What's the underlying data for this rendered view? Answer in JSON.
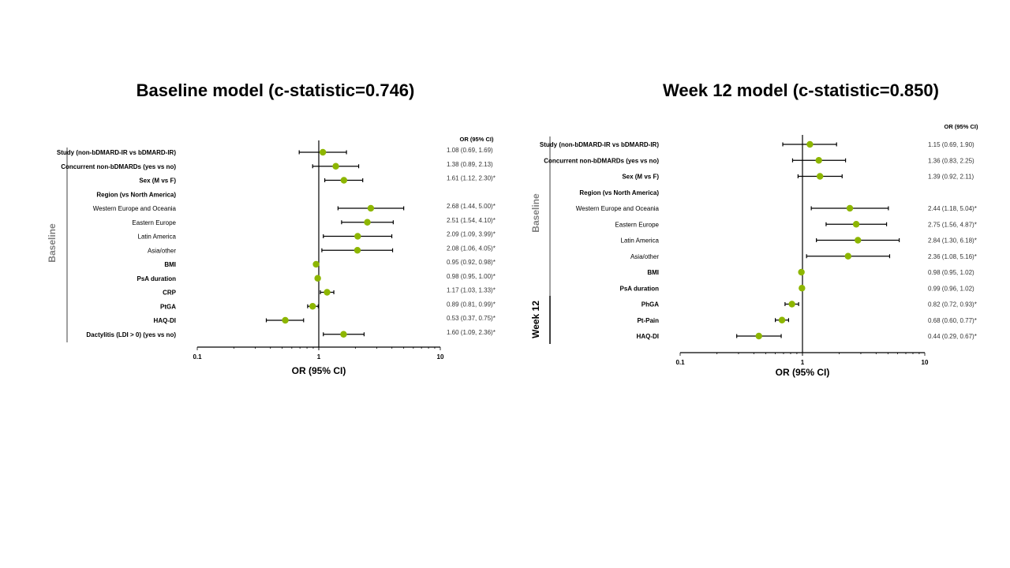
{
  "chart_data": [
    {
      "type": "forest",
      "title": "Baseline model (c-statistic=0.746)",
      "xlabel": "OR (95% CI)",
      "xscale": "log",
      "xlim": [
        0.1,
        10
      ],
      "xticks": [
        "0.1",
        "1",
        "10"
      ],
      "reference_line": 1,
      "value_header": "OR (95% CI)",
      "marker_color": "#8DB600",
      "groups": [
        {
          "label": "Baseline",
          "color": "#808080"
        }
      ],
      "rows": [
        {
          "label": "Study (non-bDMARD-IR vs bDMARD-IR)",
          "or": 1.08,
          "lo": 0.69,
          "hi": 1.69,
          "text": "1.08 (0.69, 1.69)",
          "group": "Baseline"
        },
        {
          "label": "Concurrent non-bDMARDs (yes vs no)",
          "or": 1.38,
          "lo": 0.89,
          "hi": 2.13,
          "text": "1.38 (0.89, 2.13)",
          "group": "Baseline"
        },
        {
          "label": "Sex (M vs F)",
          "or": 1.61,
          "lo": 1.12,
          "hi": 2.3,
          "text": "1.61 (1.12, 2.30)*",
          "group": "Baseline"
        },
        {
          "label": "Region (vs North America)",
          "or": null,
          "lo": null,
          "hi": null,
          "text": "",
          "group": "Baseline"
        },
        {
          "label": "Western Europe and Oceania",
          "or": 2.68,
          "lo": 1.44,
          "hi": 5.0,
          "text": "2.68 (1.44, 5.00)*",
          "subitem": true,
          "group": "Baseline"
        },
        {
          "label": "Eastern Europe",
          "or": 2.51,
          "lo": 1.54,
          "hi": 4.1,
          "text": "2.51 (1.54, 4.10)*",
          "subitem": true,
          "group": "Baseline"
        },
        {
          "label": "Latin America",
          "or": 2.09,
          "lo": 1.09,
          "hi": 3.99,
          "text": "2.09 (1.09, 3.99)*",
          "subitem": true,
          "group": "Baseline"
        },
        {
          "label": "Asia/other",
          "or": 2.08,
          "lo": 1.06,
          "hi": 4.05,
          "text": "2.08 (1.06, 4.05)*",
          "subitem": true,
          "group": "Baseline"
        },
        {
          "label": "BMI",
          "or": 0.95,
          "lo": 0.92,
          "hi": 0.98,
          "text": "0.95 (0.92, 0.98)*",
          "group": "Baseline"
        },
        {
          "label": "PsA duration",
          "or": 0.98,
          "lo": 0.95,
          "hi": 1.0,
          "text": "0.98 (0.95, 1.00)*",
          "group": "Baseline"
        },
        {
          "label": "CRP",
          "or": 1.17,
          "lo": 1.03,
          "hi": 1.33,
          "text": "1.17 (1.03, 1.33)*",
          "group": "Baseline"
        },
        {
          "label": "PtGA",
          "or": 0.89,
          "lo": 0.81,
          "hi": 0.99,
          "text": "0.89 (0.81, 0.99)*",
          "group": "Baseline"
        },
        {
          "label": "HAQ-DI",
          "or": 0.53,
          "lo": 0.37,
          "hi": 0.75,
          "text": "0.53 (0.37, 0.75)*",
          "group": "Baseline"
        },
        {
          "label": "Dactylitis (LDI > 0) (yes vs no)",
          "or": 1.6,
          "lo": 1.09,
          "hi": 2.36,
          "text": "1.60 (1.09, 2.36)*",
          "group": "Baseline"
        }
      ]
    },
    {
      "type": "forest",
      "title": "Week 12 model (c-statistic=0.850)",
      "xlabel": "OR (95% CI)",
      "xscale": "log",
      "xlim": [
        0.1,
        10
      ],
      "xticks": [
        "0.1",
        "1",
        "10"
      ],
      "reference_line": 1,
      "value_header": "OR (95% CI)",
      "marker_color": "#8DB600",
      "groups": [
        {
          "label": "Baseline",
          "color": "#808080"
        },
        {
          "label": "Week 12",
          "color": "#000000"
        }
      ],
      "rows": [
        {
          "label": "Study (non-bDMARD-IR vs bDMARD-IR)",
          "or": 1.15,
          "lo": 0.69,
          "hi": 1.9,
          "text": "1.15 (0.69, 1.90)",
          "group": "Baseline"
        },
        {
          "label": "Concurrent non-bDMARDs (yes vs no)",
          "or": 1.36,
          "lo": 0.83,
          "hi": 2.25,
          "text": "1.36 (0.83, 2.25)",
          "group": "Baseline"
        },
        {
          "label": "Sex (M vs F)",
          "or": 1.39,
          "lo": 0.92,
          "hi": 2.11,
          "text": "1.39 (0.92, 2.11)",
          "group": "Baseline"
        },
        {
          "label": "Region (vs North America)",
          "or": null,
          "lo": null,
          "hi": null,
          "text": "",
          "group": "Baseline"
        },
        {
          "label": "Western Europe and Oceania",
          "or": 2.44,
          "lo": 1.18,
          "hi": 5.04,
          "text": "2.44 (1.18, 5.04)*",
          "subitem": true,
          "group": "Baseline"
        },
        {
          "label": "Eastern Europe",
          "or": 2.75,
          "lo": 1.56,
          "hi": 4.87,
          "text": "2.75 (1.56, 4.87)*",
          "subitem": true,
          "group": "Baseline"
        },
        {
          "label": "Latin America",
          "or": 2.84,
          "lo": 1.3,
          "hi": 6.18,
          "text": "2.84 (1.30, 6.18)*",
          "subitem": true,
          "group": "Baseline"
        },
        {
          "label": "Asia/other",
          "or": 2.36,
          "lo": 1.08,
          "hi": 5.16,
          "text": "2.36 (1.08, 5.16)*",
          "subitem": true,
          "group": "Baseline"
        },
        {
          "label": "BMI",
          "or": 0.98,
          "lo": 0.95,
          "hi": 1.02,
          "text": "0.98 (0.95, 1.02)",
          "group": "Baseline"
        },
        {
          "label": "PsA duration",
          "or": 0.99,
          "lo": 0.96,
          "hi": 1.02,
          "text": "0.99 (0.96, 1.02)",
          "group": "Baseline"
        },
        {
          "label": "PhGA",
          "or": 0.82,
          "lo": 0.72,
          "hi": 0.93,
          "text": "0.82 (0.72, 0.93)*",
          "group": "Week 12"
        },
        {
          "label": "Pt-Pain",
          "or": 0.68,
          "lo": 0.6,
          "hi": 0.77,
          "text": "0.68 (0.60, 0.77)*",
          "group": "Week 12"
        },
        {
          "label": "HAQ-DI",
          "or": 0.44,
          "lo": 0.29,
          "hi": 0.67,
          "text": "0.44 (0.29, 0.67)*",
          "group": "Week 12"
        }
      ]
    }
  ]
}
